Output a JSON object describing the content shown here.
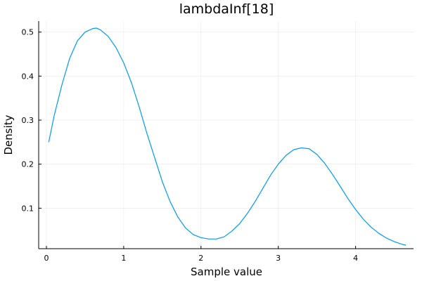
{
  "chart_data": {
    "type": "line",
    "title": "lambdaInf[18]",
    "xlabel": "Sample value",
    "ylabel": "Density",
    "xlim": [
      -0.1,
      4.75
    ],
    "ylim": [
      0.008,
      0.525
    ],
    "x_ticks": [
      0,
      1,
      2,
      3,
      4
    ],
    "y_ticks": [
      0.1,
      0.2,
      0.3,
      0.4,
      0.5
    ],
    "grid": true,
    "legend": "none",
    "series": [
      {
        "color": "#009AFA",
        "x": [
          0.03,
          0.1,
          0.2,
          0.3,
          0.4,
          0.5,
          0.6,
          0.65,
          0.7,
          0.8,
          0.9,
          1.0,
          1.1,
          1.2,
          1.3,
          1.4,
          1.5,
          1.6,
          1.7,
          1.8,
          1.9,
          2.0,
          2.1,
          2.2,
          2.3,
          2.4,
          2.5,
          2.6,
          2.7,
          2.8,
          2.9,
          3.0,
          3.1,
          3.2,
          3.3,
          3.4,
          3.5,
          3.6,
          3.7,
          3.8,
          3.9,
          4.0,
          4.1,
          4.2,
          4.3,
          4.4,
          4.5,
          4.6,
          4.65
        ],
        "y": [
          0.25,
          0.31,
          0.38,
          0.44,
          0.48,
          0.5,
          0.508,
          0.509,
          0.505,
          0.49,
          0.465,
          0.43,
          0.385,
          0.33,
          0.27,
          0.215,
          0.16,
          0.115,
          0.08,
          0.055,
          0.04,
          0.033,
          0.03,
          0.03,
          0.035,
          0.048,
          0.065,
          0.088,
          0.115,
          0.145,
          0.175,
          0.2,
          0.22,
          0.233,
          0.237,
          0.235,
          0.222,
          0.202,
          0.177,
          0.15,
          0.122,
          0.097,
          0.075,
          0.057,
          0.043,
          0.032,
          0.024,
          0.018,
          0.016
        ]
      }
    ]
  }
}
